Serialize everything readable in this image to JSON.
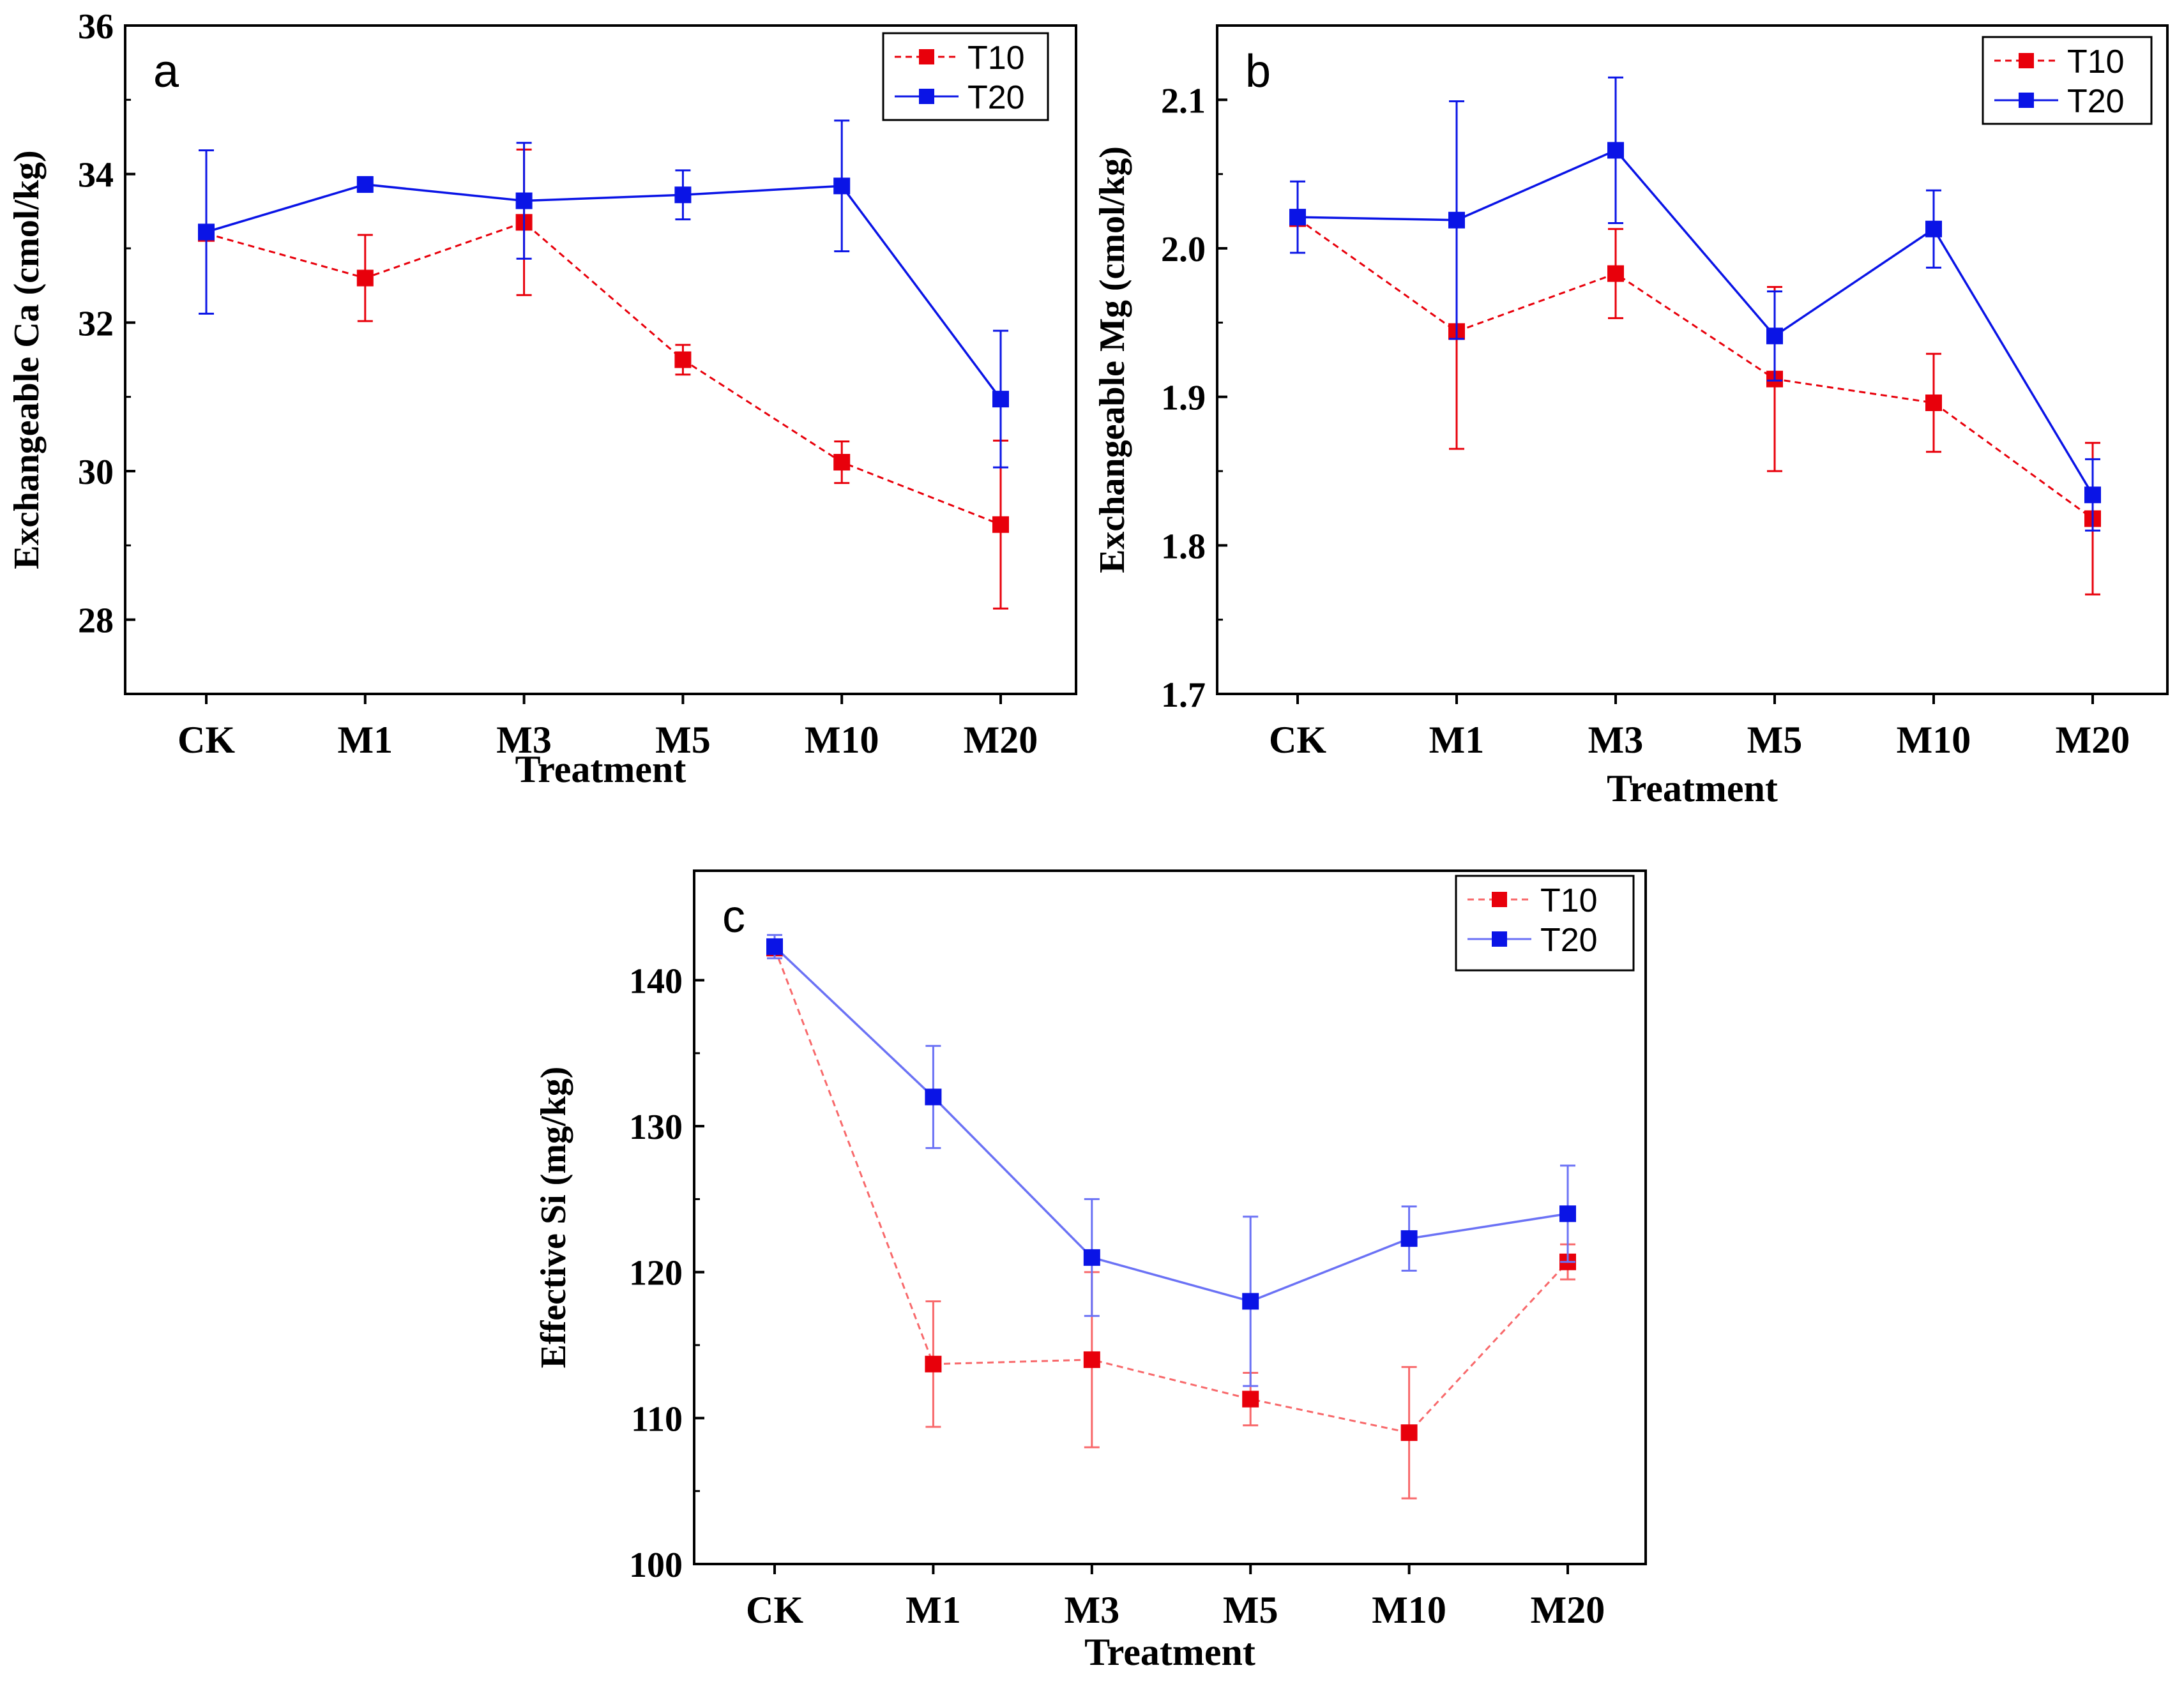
{
  "chart_data": [
    {
      "type": "line",
      "panel_label": "a",
      "title": "",
      "xlabel": "Treatment",
      "ylabel": "Exchangeable Ca (cmol/kg)",
      "categories": [
        "CK",
        "M1",
        "M3",
        "M5",
        "M10",
        "M20"
      ],
      "ylim": [
        27,
        36
      ],
      "yticks": [
        28,
        30,
        32,
        34,
        36
      ],
      "ytick_labels": [
        "28",
        "30",
        "32",
        "34",
        "36"
      ],
      "legend_position": "top-right",
      "series": [
        {
          "name": "T10",
          "color": "#e8000b",
          "line_style": "dashed",
          "values": [
            33.2,
            32.6,
            33.35,
            31.5,
            30.12,
            29.28
          ],
          "errors": [
            0.0,
            0.58,
            0.98,
            0.2,
            0.28,
            1.13
          ]
        },
        {
          "name": "T20",
          "color": "#0a14e6",
          "line_style": "solid",
          "values": [
            33.22,
            33.86,
            33.64,
            33.72,
            33.84,
            30.97
          ],
          "errors": [
            1.1,
            0.1,
            0.78,
            0.33,
            0.88,
            0.92
          ]
        }
      ]
    },
    {
      "type": "line",
      "panel_label": "b",
      "title": "",
      "xlabel": "Treatment",
      "ylabel": "Exchangeable Mg (cmol/kg)",
      "categories": [
        "CK",
        "M1",
        "M3",
        "M5",
        "M10",
        "M20"
      ],
      "ylim": [
        1.7,
        2.15
      ],
      "yticks": [
        1.7,
        1.8,
        1.9,
        2.0,
        2.1
      ],
      "ytick_labels": [
        "1.7",
        "1.8",
        "1.9",
        "2.0",
        "2.1"
      ],
      "legend_position": "top-right",
      "series": [
        {
          "name": "T10",
          "color": "#e8000b",
          "line_style": "dashed",
          "values": [
            2.02,
            1.944,
            1.983,
            1.912,
            1.896,
            1.818
          ],
          "errors": [
            0.0,
            0.079,
            0.03,
            0.062,
            0.033,
            0.051
          ]
        },
        {
          "name": "T20",
          "color": "#0a14e6",
          "line_style": "solid",
          "values": [
            2.021,
            2.019,
            2.066,
            1.941,
            2.013,
            1.834
          ],
          "errors": [
            0.024,
            0.08,
            0.049,
            0.03,
            0.026,
            0.024
          ]
        }
      ]
    },
    {
      "type": "line",
      "panel_label": "c",
      "title": "",
      "xlabel": "Treatment",
      "ylabel": "Effective Si (mg/kg)",
      "categories": [
        "CK",
        "M1",
        "M3",
        "M5",
        "M10",
        "M20"
      ],
      "ylim": [
        100,
        147.5
      ],
      "yticks": [
        100,
        110,
        120,
        130,
        140
      ],
      "ytick_labels": [
        "100",
        "110",
        "120",
        "130",
        "140"
      ],
      "legend_position": "top-right",
      "series": [
        {
          "name": "T10",
          "color": "#f8696b",
          "line_style": "dashed",
          "values": [
            142.2,
            113.7,
            114.0,
            111.3,
            109.0,
            120.7
          ],
          "errors": [
            0.0,
            4.3,
            6.0,
            1.8,
            4.5,
            1.2
          ]
        },
        {
          "name": "T20",
          "color": "#6b72f5",
          "line_style": "solid",
          "values": [
            142.3,
            132.0,
            121.0,
            118.0,
            122.3,
            124.0
          ],
          "errors": [
            0.8,
            3.5,
            4.0,
            5.8,
            2.2,
            3.3
          ]
        }
      ]
    }
  ],
  "marker_colors": {
    "T10": "#e8000b",
    "T20": "#0a14e6"
  }
}
